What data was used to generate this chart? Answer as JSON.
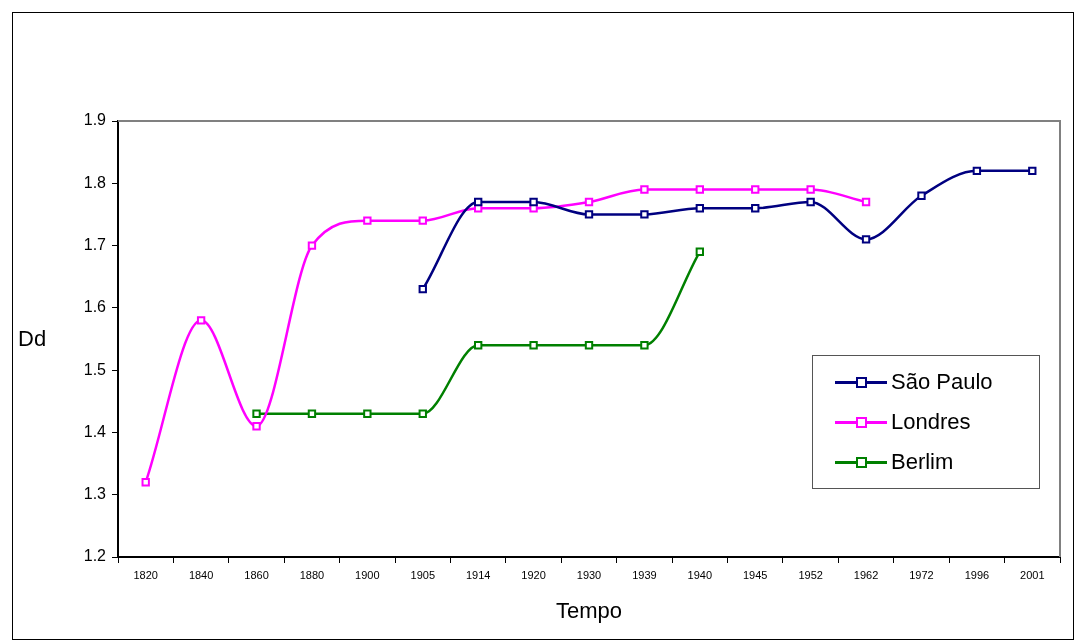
{
  "chart_data": {
    "type": "line",
    "xlabel": "Tempo",
    "ylabel": "Dd",
    "categories": [
      "1820",
      "1840",
      "1860",
      "1880",
      "1900",
      "1905",
      "1914",
      "1920",
      "1930",
      "1939",
      "1940",
      "1945",
      "1952",
      "1962",
      "1972",
      "1996",
      "2001"
    ],
    "series": [
      {
        "name": "São Paulo",
        "color": "#000080",
        "values": [
          null,
          null,
          null,
          null,
          null,
          1.63,
          1.77,
          1.77,
          1.75,
          1.75,
          1.76,
          1.76,
          1.77,
          1.71,
          1.78,
          1.82,
          1.82
        ]
      },
      {
        "name": "Londres",
        "color": "#ff00ff",
        "values": [
          1.32,
          1.58,
          1.41,
          1.7,
          1.74,
          1.74,
          1.76,
          1.76,
          1.77,
          1.79,
          1.79,
          1.79,
          1.79,
          1.77,
          null,
          null,
          null
        ]
      },
      {
        "name": "Berlim",
        "color": "#008000",
        "values": [
          null,
          null,
          1.43,
          1.43,
          1.43,
          1.43,
          1.54,
          1.54,
          1.54,
          1.54,
          1.69,
          null,
          null,
          null,
          null,
          null,
          null
        ]
      }
    ],
    "ylim": [
      1.2,
      1.9
    ],
    "yticks": [
      1.2,
      1.3,
      1.4,
      1.5,
      1.6,
      1.7,
      1.8,
      1.9
    ],
    "marker": "square",
    "legend": "right"
  }
}
